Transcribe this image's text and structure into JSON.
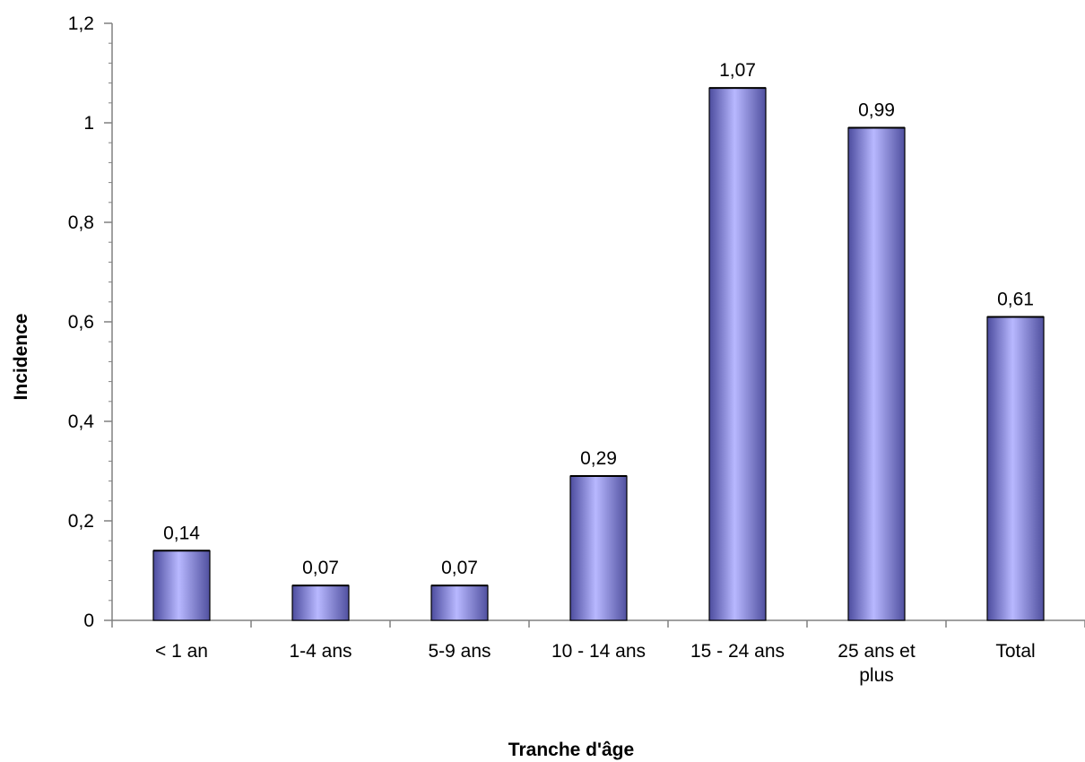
{
  "chart_data": {
    "type": "bar",
    "categories": [
      [
        "< 1 an"
      ],
      [
        "1-4 ans"
      ],
      [
        "5-9 ans"
      ],
      [
        "10 - 14 ans"
      ],
      [
        "15 - 24 ans"
      ],
      [
        "25 ans et",
        "plus"
      ],
      [
        "Total"
      ]
    ],
    "values": [
      0.14,
      0.07,
      0.07,
      0.29,
      1.07,
      0.99,
      0.61
    ],
    "data_labels": [
      "0,14",
      "0,07",
      "0,07",
      "0,29",
      "1,07",
      "0,99",
      "0,61"
    ],
    "y_ticks": [
      "0",
      "0,2",
      "0,4",
      "0,6",
      "0,8",
      "1",
      "1,2"
    ],
    "ylim": [
      0,
      1.2
    ],
    "xlabel": "Tranche d'âge",
    "ylabel": "Incidence",
    "grid": false,
    "legend": "none",
    "bar_color": "#9999ff"
  }
}
